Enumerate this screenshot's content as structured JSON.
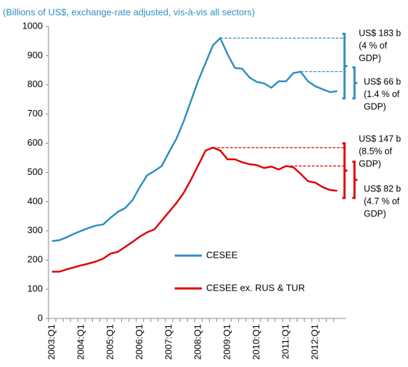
{
  "chart_data": {
    "type": "line",
    "subtitle": "(Billions of US$, exchange-rate adjusted, vis-à-vis all sectors)",
    "categories": [
      "2003:Q1",
      null,
      null,
      null,
      "2004:Q1",
      null,
      null,
      null,
      "2005:Q1",
      null,
      null,
      null,
      "2006:Q1",
      null,
      null,
      null,
      "2007:Q1",
      null,
      null,
      null,
      "2008:Q1",
      null,
      null,
      null,
      "2009:Q1",
      null,
      null,
      null,
      "2010:Q1",
      null,
      null,
      null,
      "2011:Q1",
      null,
      null,
      null,
      "2012:Q1",
      null,
      null,
      null
    ],
    "series": [
      {
        "name": "CESEE",
        "color": "#2e8fc0",
        "values": [
          265,
          268,
          278,
          290,
          300,
          310,
          318,
          322,
          345,
          365,
          378,
          405,
          450,
          490,
          505,
          522,
          570,
          615,
          675,
          745,
          815,
          875,
          935,
          960,
          905,
          858,
          855,
          825,
          810,
          805,
          790,
          812,
          812,
          840,
          845,
          812,
          795,
          785,
          775,
          778
        ]
      },
      {
        "name": "CESEE ex. RUS & TUR",
        "color": "#e00000",
        "values": [
          160,
          160,
          168,
          175,
          182,
          188,
          195,
          205,
          222,
          228,
          245,
          262,
          280,
          295,
          305,
          335,
          365,
          395,
          430,
          475,
          525,
          575,
          585,
          575,
          545,
          545,
          535,
          528,
          525,
          515,
          520,
          510,
          522,
          518,
          495,
          470,
          465,
          450,
          440,
          437
        ]
      }
    ],
    "ylim": [
      0,
      1000
    ],
    "yticks": [
      0,
      100,
      200,
      300,
      400,
      500,
      600,
      700,
      800,
      900,
      1000
    ],
    "annotations": [
      {
        "series": 0,
        "level": 960,
        "text": [
          "US$ 183 b",
          "(4 % of",
          "GDP)"
        ]
      },
      {
        "series": 0,
        "level": 845,
        "text": [
          "US$ 66 b",
          "(1.4 % of",
          "GDP)"
        ]
      },
      {
        "series": 1,
        "level": 585,
        "text": [
          "US$ 147 b",
          "(8.5% of",
          "GDP)"
        ]
      },
      {
        "series": 1,
        "level": 522,
        "text": [
          "US$ 82 b",
          "(4.7 % of",
          "GDP)"
        ]
      }
    ]
  }
}
